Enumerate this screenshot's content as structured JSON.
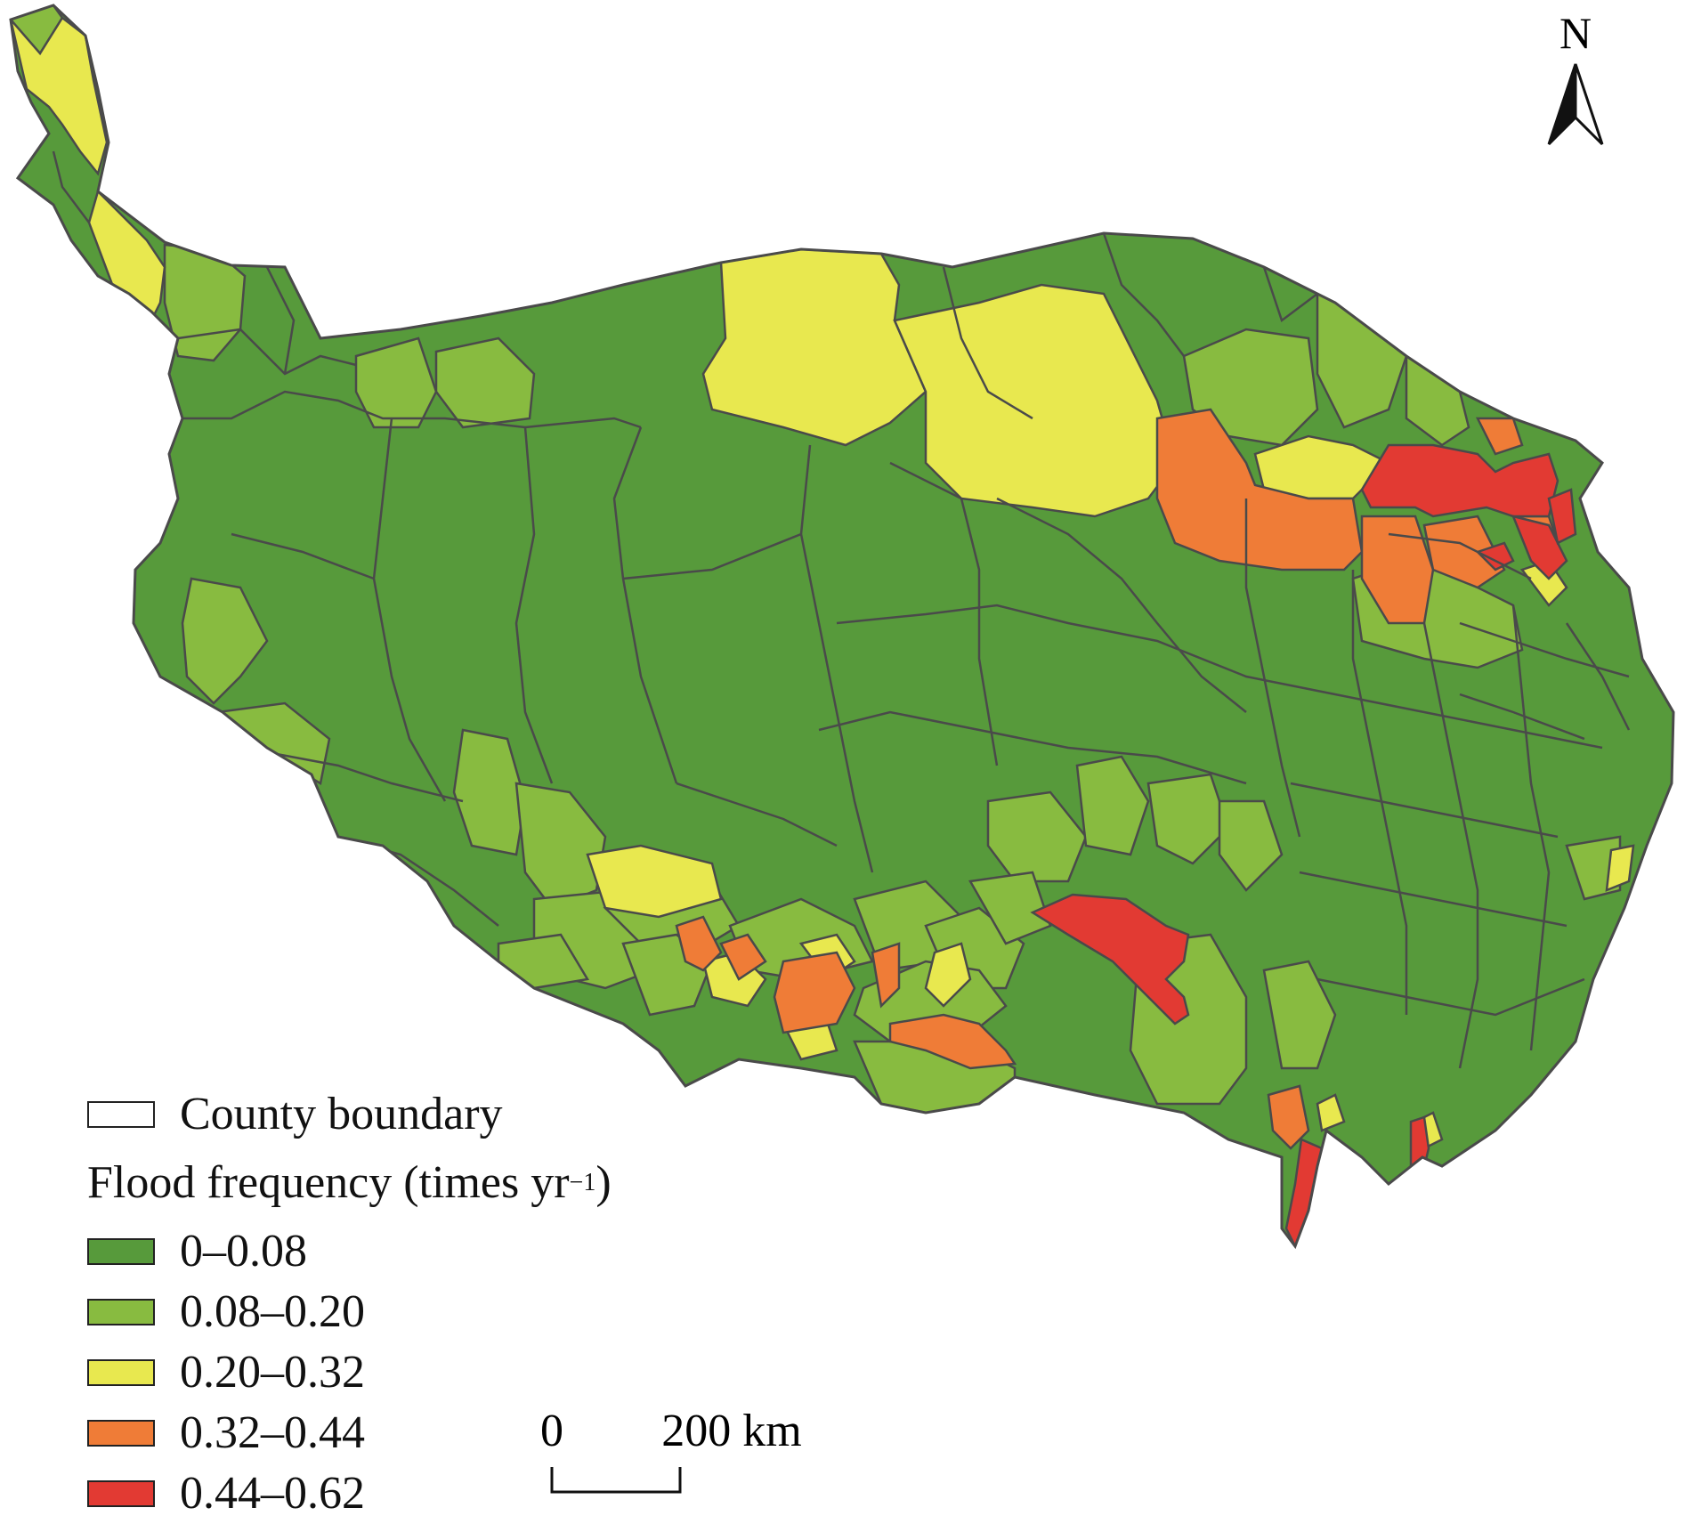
{
  "map": {
    "colors": {
      "c0": "#579a3b",
      "c1": "#88bb40",
      "c2": "#e8e84f",
      "c3": "#ef7c37",
      "c4": "#e23a33",
      "boundary": "#4a4a4a"
    }
  },
  "legend": {
    "boundary_label": "County boundary",
    "title": "Flood frequency (times yr",
    "title_exp": "−1",
    "title_close": ")",
    "classes": [
      {
        "label": "0–0.08",
        "color": "#579a3b"
      },
      {
        "label": "0.08–0.20",
        "color": "#88bb40"
      },
      {
        "label": "0.20–0.32",
        "color": "#e8e84f"
      },
      {
        "label": "0.32–0.44",
        "color": "#ef7c37"
      },
      {
        "label": "0.44–0.62",
        "color": "#e23a33"
      }
    ]
  },
  "scalebar": {
    "start": "0",
    "end": "200 km"
  },
  "north": {
    "label": "N"
  }
}
